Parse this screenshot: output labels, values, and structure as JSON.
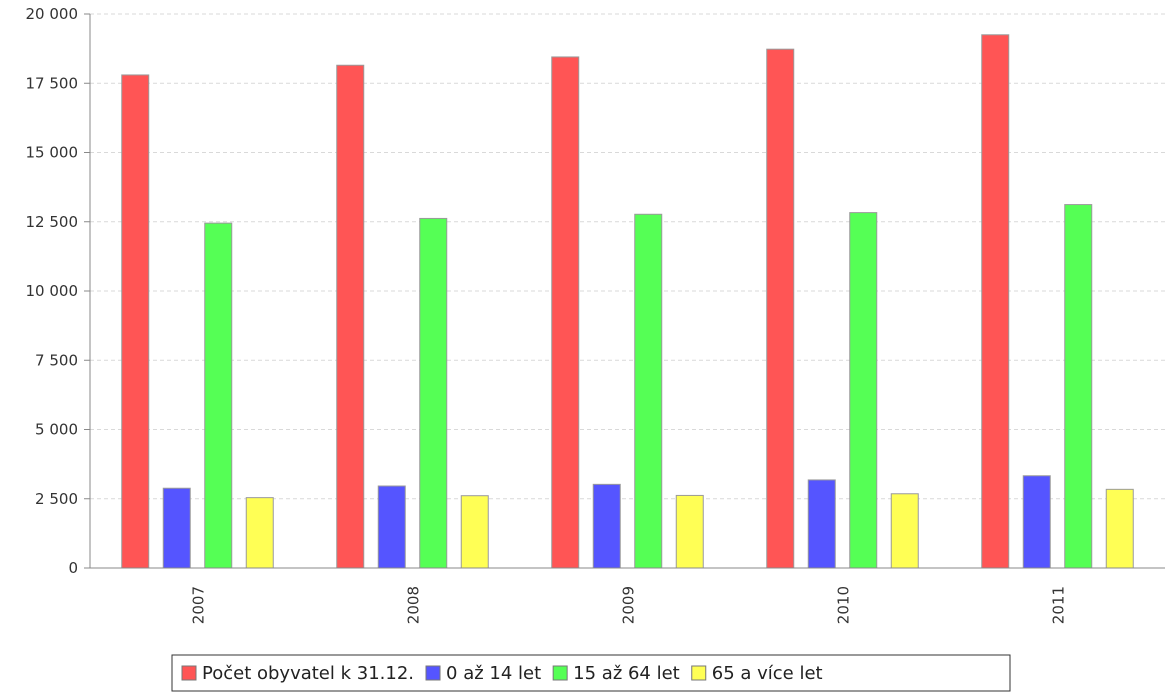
{
  "chart_data": {
    "type": "bar",
    "title": "",
    "xlabel": "",
    "ylabel": "",
    "categories": [
      "2007",
      "2008",
      "2009",
      "2010",
      "2011"
    ],
    "series": [
      {
        "name": "Počet obyvatel k 31.12.",
        "color": "#ff5555",
        "values": [
          17800,
          18150,
          18450,
          18730,
          19250
        ]
      },
      {
        "name": "0 až 14 let",
        "color": "#5555ff",
        "values": [
          2880,
          2960,
          3020,
          3180,
          3330
        ]
      },
      {
        "name": "15 až 64 let",
        "color": "#55ff55",
        "values": [
          12450,
          12620,
          12770,
          12830,
          13120
        ]
      },
      {
        "name": "65 a více let",
        "color": "#ffff55",
        "values": [
          2540,
          2610,
          2620,
          2680,
          2840
        ]
      }
    ],
    "ylim": [
      0,
      20000
    ],
    "yticks": [
      0,
      2500,
      5000,
      7500,
      10000,
      12500,
      15000,
      17500,
      20000
    ],
    "ytick_labels": [
      "0",
      "2 500",
      "5 000",
      "7 500",
      "10 000",
      "12 500",
      "15 000",
      "17 500",
      "20 000"
    ],
    "grid": true,
    "legend_position": "bottom"
  }
}
